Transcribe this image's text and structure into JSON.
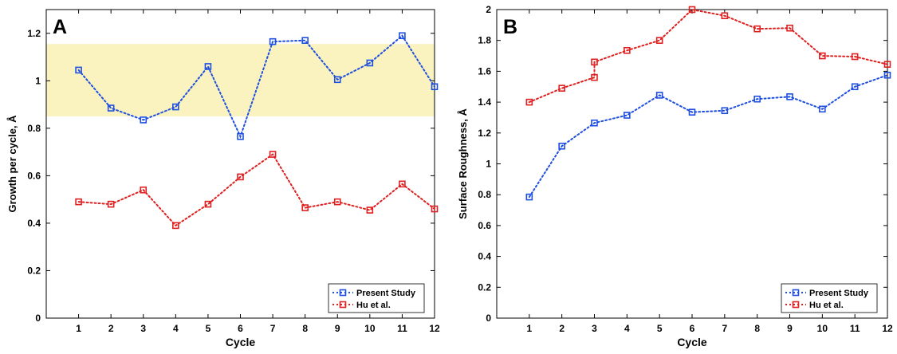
{
  "chart_data": [
    {
      "type": "line",
      "panel_label": "A",
      "xlabel": "Cycle",
      "ylabel": "Growth per cycle, Å",
      "xlim": [
        0,
        12
      ],
      "ylim": [
        0,
        1.3
      ],
      "x_ticks": [
        1,
        2,
        3,
        4,
        5,
        6,
        7,
        8,
        9,
        10,
        11,
        12
      ],
      "y_ticks": [
        0,
        0.2,
        0.4,
        0.6,
        0.8,
        1,
        1.2
      ],
      "y_tick_labels": [
        "0",
        "0.2",
        "0.4",
        "0.6",
        "0.8",
        "1",
        "1.2"
      ],
      "highlight_band": {
        "y_from": 0.85,
        "y_to": 1.155,
        "color": "#faf3bf"
      },
      "legend_position": "bottom-right",
      "grid": false,
      "series": [
        {
          "name": "Present Study",
          "color": "#1f4fe0",
          "x": [
            1,
            2,
            3,
            4,
            5,
            6,
            7,
            8,
            9,
            10,
            11,
            12
          ],
          "values": [
            1.045,
            0.885,
            0.835,
            0.89,
            1.06,
            0.765,
            1.165,
            1.17,
            1.005,
            1.075,
            1.19,
            0.975
          ]
        },
        {
          "name": "Hu et al.",
          "color": "#e02020",
          "x": [
            1,
            2,
            3,
            4,
            5,
            6,
            7,
            8,
            9,
            10,
            11,
            12
          ],
          "values": [
            0.49,
            0.48,
            0.54,
            0.39,
            0.48,
            0.595,
            0.69,
            0.465,
            0.49,
            0.455,
            0.565,
            0.46
          ]
        }
      ]
    },
    {
      "type": "line",
      "panel_label": "B",
      "xlabel": "Cycle",
      "ylabel": "Surface Roughness, Å",
      "xlim": [
        0,
        12
      ],
      "ylim": [
        0,
        2
      ],
      "x_ticks": [
        1,
        2,
        3,
        4,
        5,
        6,
        7,
        8,
        9,
        10,
        11,
        12
      ],
      "y_ticks": [
        0,
        0.2,
        0.4,
        0.6,
        0.8,
        1,
        1.2,
        1.4,
        1.6,
        1.8,
        2
      ],
      "y_tick_labels": [
        "0",
        "0.2",
        "0.4",
        "0.6",
        "0.8",
        "1",
        "1.2",
        "1.4",
        "1.6",
        "1.8",
        "2"
      ],
      "legend_position": "bottom-right",
      "grid": false,
      "series": [
        {
          "name": "Present Study",
          "color": "#1f4fe0",
          "x": [
            1,
            2,
            3,
            4,
            5,
            6,
            7,
            8,
            9,
            10,
            11,
            12
          ],
          "values": [
            0.785,
            1.115,
            1.265,
            1.315,
            1.445,
            1.335,
            1.345,
            1.42,
            1.435,
            1.355,
            1.5,
            1.575
          ]
        },
        {
          "name": "Hu et al.",
          "color": "#e02020",
          "x": [
            1,
            2,
            3,
            3,
            4,
            5,
            6,
            7,
            8,
            9,
            10,
            11,
            12
          ],
          "values": [
            1.4,
            1.49,
            1.56,
            1.66,
            1.735,
            1.8,
            2.0,
            1.96,
            1.875,
            1.88,
            1.7,
            1.695,
            1.645
          ]
        }
      ]
    }
  ]
}
